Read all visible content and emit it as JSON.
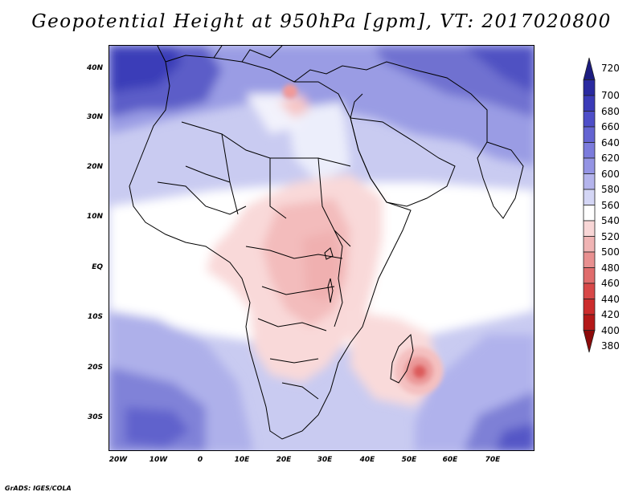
{
  "title": "Geopotential Height at 950hPa [gpm], VT: 2017020800",
  "credit": "GrADS: IGES/COLA",
  "latitude_labels": [
    "40N",
    "30N",
    "20N",
    "10N",
    "EQ",
    "10S",
    "20S",
    "30S"
  ],
  "longitude_labels": [
    "20W",
    "10W",
    "0",
    "10E",
    "20E",
    "30E",
    "40E",
    "50E",
    "60E",
    "70E"
  ],
  "colorbar": {
    "levels": [
      "720",
      "700",
      "680",
      "660",
      "640",
      "620",
      "600",
      "580",
      "560",
      "540",
      "520",
      "500",
      "480",
      "460",
      "440",
      "420",
      "400",
      "380"
    ],
    "colors": [
      "#1c1c80",
      "#2a2aa0",
      "#3b3bb8",
      "#4e4ec8",
      "#6464d2",
      "#7b7bdc",
      "#9494e4",
      "#b4b4ec",
      "#d4d6f5",
      "#ffffff",
      "#f8d6d6",
      "#f0b4b4",
      "#e89090",
      "#e06c6c",
      "#d84848",
      "#cc2c2c",
      "#b41818",
      "#8c0a0a"
    ]
  },
  "map": {
    "region": "Africa",
    "lon_range": [
      -25,
      80
    ],
    "lat_range": [
      -38,
      45
    ],
    "field": "geopotential height",
    "level": "950hPa",
    "units": "gpm"
  }
}
